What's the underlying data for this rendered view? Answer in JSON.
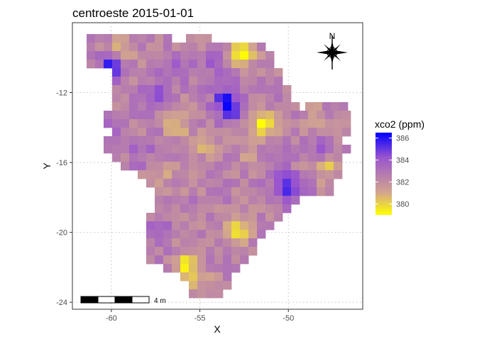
{
  "title": "centroeste 2015-01-01",
  "x_label": "X",
  "y_label": "Y",
  "legend": {
    "title": "xco2 (ppm)",
    "ticks": [
      386,
      384,
      382,
      380
    ],
    "range": [
      379,
      386.5
    ],
    "colors": [
      "#ffff00",
      "#d2a58e",
      "#9954cf",
      "#0000ff"
    ]
  },
  "north_label": "N",
  "scale_bar": {
    "label": "4 m"
  },
  "chart_data": {
    "type": "heatmap",
    "title": "centroeste 2015-01-01",
    "xlabel": "X",
    "ylabel": "Y",
    "x_ticks": [
      -60,
      -55,
      -50
    ],
    "y_ticks": [
      -12,
      -16,
      -20,
      -24
    ],
    "xlim": [
      -62.2,
      -45.8
    ],
    "ylim": [
      -24.4,
      -8.0
    ],
    "value_range": [
      379,
      386.5
    ],
    "grid": true,
    "legend_placement": "right",
    "hotspots": [
      {
        "x": -60.0,
        "y": -10.7,
        "value": 386.3
      },
      {
        "x": -53.5,
        "y": -12.3,
        "value": 385.0
      },
      {
        "x": -53.3,
        "y": -13.1,
        "value": 384.9
      },
      {
        "x": -52.6,
        "y": -9.8,
        "value": 379.5
      },
      {
        "x": -51.4,
        "y": -13.7,
        "value": 379.3
      },
      {
        "x": -56.3,
        "y": -13.8,
        "value": 380.8
      },
      {
        "x": -54.6,
        "y": -15.0,
        "value": 380.7
      },
      {
        "x": -52.9,
        "y": -19.9,
        "value": 379.4
      },
      {
        "x": -55.8,
        "y": -21.9,
        "value": 379.7
      },
      {
        "x": -47.9,
        "y": -16.3,
        "value": 380.4
      },
      {
        "x": -49.7,
        "y": -17.7,
        "value": 384.6
      },
      {
        "x": -50.3,
        "y": -17.0,
        "value": 384.2
      },
      {
        "x": -48.2,
        "y": -15.3,
        "value": 384.1
      },
      {
        "x": -57.3,
        "y": -12.0,
        "value": 384.3
      },
      {
        "x": -58.3,
        "y": -15.3,
        "value": 383.6
      },
      {
        "x": -57.4,
        "y": -20.0,
        "value": 384.0
      },
      {
        "x": -60.3,
        "y": -14.0,
        "value": 383.5
      },
      {
        "x": -54.1,
        "y": -10.5,
        "value": 383.6
      },
      {
        "x": -56.4,
        "y": -10.5,
        "value": 384.0
      },
      {
        "x": -59.3,
        "y": -9.6,
        "value": 380.5
      },
      {
        "x": -52.2,
        "y": -15.8,
        "value": 381.4
      },
      {
        "x": -48.5,
        "y": -13.5,
        "value": 381.3
      },
      {
        "x": -56.9,
        "y": -16.7,
        "value": 381.5
      },
      {
        "x": -54.9,
        "y": -22.8,
        "value": 381.1
      }
    ],
    "background_value": 382.4
  }
}
